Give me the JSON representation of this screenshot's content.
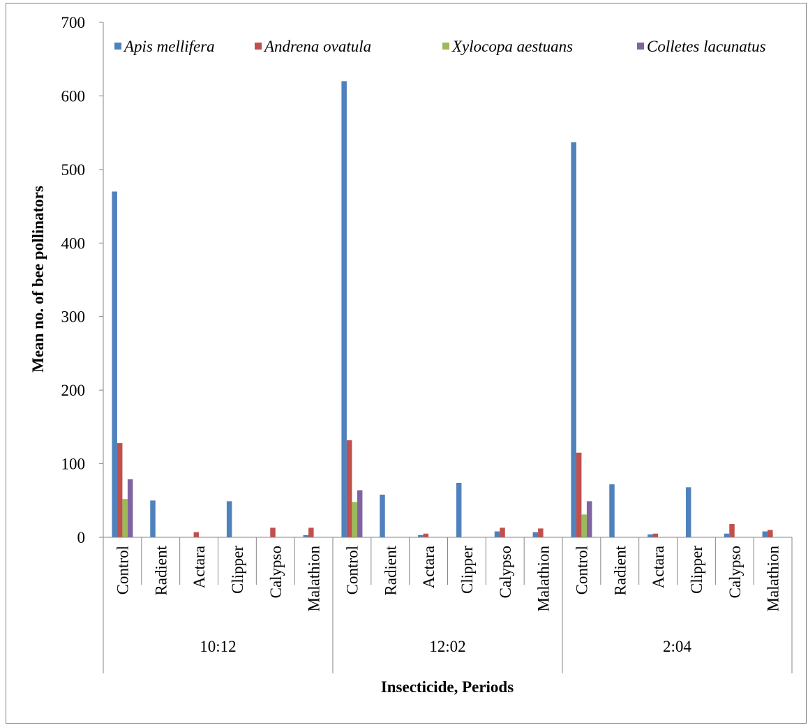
{
  "chart_data": {
    "type": "bar",
    "xlabel": "Insecticide, Periods",
    "ylabel": "Mean no. of bee pollinators",
    "ylim": [
      0,
      700
    ],
    "yticks": [
      "0",
      "100",
      "200",
      "300",
      "400",
      "500",
      "600",
      "700"
    ],
    "legend_position": "top",
    "groups": [
      "10:12",
      "12:02",
      "2:04"
    ],
    "categories": [
      "Control",
      "Radient",
      "Actara",
      "Clipper",
      "Calypso",
      "Malathion"
    ],
    "series": [
      {
        "name": "Apis mellifera",
        "color": "#4f81bd",
        "values": [
          [
            470,
            50,
            0,
            49,
            0,
            3
          ],
          [
            620,
            58,
            3,
            74,
            8,
            7
          ],
          [
            537,
            72,
            4,
            68,
            5,
            8
          ]
        ]
      },
      {
        "name": "Andrena ovatula",
        "color": "#c0504d",
        "values": [
          [
            128,
            0,
            7,
            0,
            13,
            13
          ],
          [
            132,
            0,
            5,
            0,
            13,
            12
          ],
          [
            115,
            0,
            5,
            0,
            18,
            10
          ]
        ]
      },
      {
        "name": "Xylocopa aestuans",
        "color": "#9bbb59",
        "values": [
          [
            52,
            0,
            0,
            0,
            0,
            0
          ],
          [
            48,
            0,
            0,
            0,
            0,
            0
          ],
          [
            31,
            0,
            0,
            0,
            0,
            0
          ]
        ]
      },
      {
        "name": "Colletes lacunatus",
        "color": "#8064a2",
        "values": [
          [
            79,
            0,
            0,
            0,
            0,
            0
          ],
          [
            64,
            0,
            0,
            0,
            0,
            0
          ],
          [
            49,
            0,
            0,
            0,
            0,
            0
          ]
        ]
      }
    ]
  }
}
